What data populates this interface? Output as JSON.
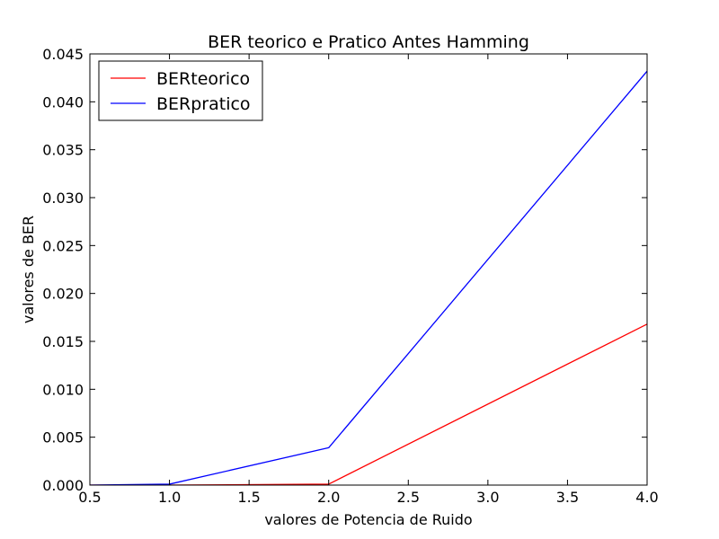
{
  "chart_data": {
    "type": "line",
    "title": "BER teorico e Pratico Antes Hamming",
    "xlabel": "valores de Potencia de Ruido",
    "ylabel": "valores de BER",
    "xlim": [
      0.5,
      4.0
    ],
    "ylim": [
      0.0,
      0.045
    ],
    "xticks": [
      0.5,
      1.0,
      1.5,
      2.0,
      2.5,
      3.0,
      3.5,
      4.0
    ],
    "xtick_labels": [
      "0.5",
      "1.0",
      "1.5",
      "2.0",
      "2.5",
      "3.0",
      "3.5",
      "4.0"
    ],
    "yticks": [
      0.0,
      0.005,
      0.01,
      0.015,
      0.02,
      0.025,
      0.03,
      0.035,
      0.04,
      0.045
    ],
    "ytick_labels": [
      "0.000",
      "0.005",
      "0.010",
      "0.015",
      "0.020",
      "0.025",
      "0.030",
      "0.035",
      "0.040",
      "0.045"
    ],
    "grid": false,
    "legend_position": "top-left",
    "series": [
      {
        "name": "BERteorico",
        "color": "#ff0000",
        "x": [
          0.5,
          1.0,
          2.0,
          4.0
        ],
        "y": [
          0.0,
          0.0,
          0.0001,
          0.0168
        ]
      },
      {
        "name": "BERpratico",
        "color": "#0000ff",
        "x": [
          0.5,
          1.0,
          2.0,
          4.0
        ],
        "y": [
          0.0,
          0.0001,
          0.0039,
          0.0432
        ]
      }
    ]
  }
}
